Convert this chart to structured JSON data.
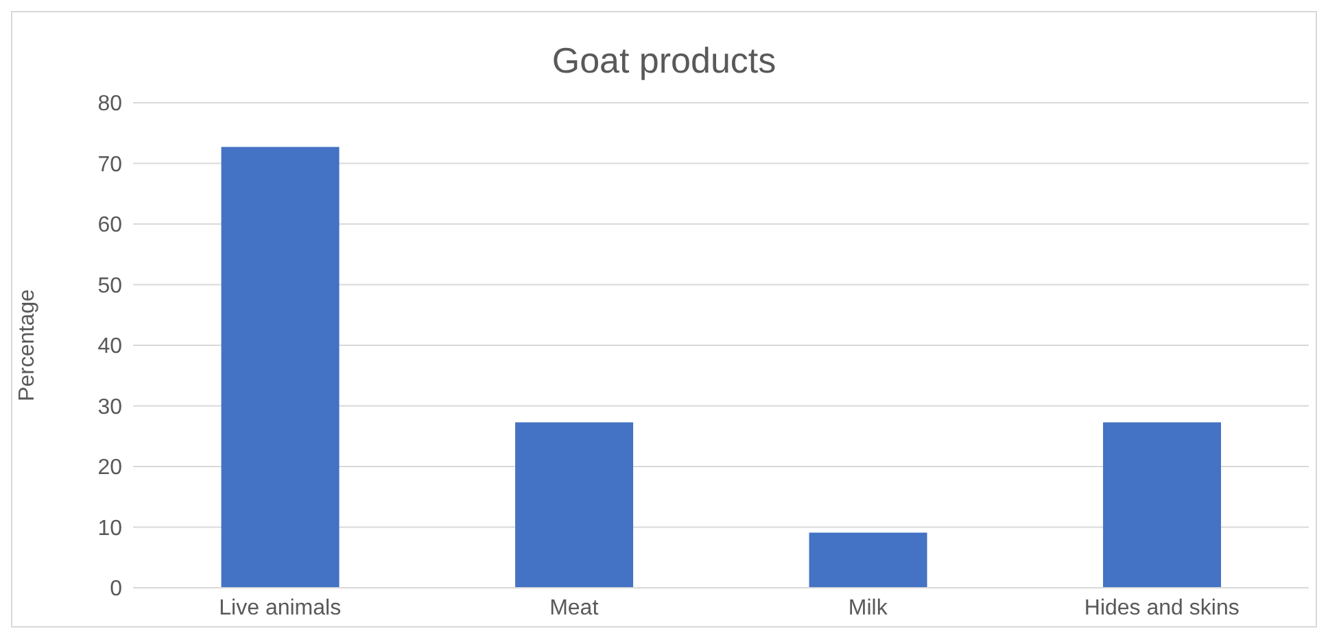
{
  "chart_data": {
    "type": "bar",
    "title": "Goat products",
    "ylabel": "Percentage",
    "categories": [
      "Live animals",
      "Meat",
      "Milk",
      "Hides and skins"
    ],
    "values": [
      72.7,
      27.3,
      9.1,
      27.3
    ],
    "color": "#4472c4",
    "ylim": [
      0,
      80
    ],
    "yticks": [
      0,
      10,
      20,
      30,
      40,
      50,
      60,
      70,
      80
    ],
    "grid": "y"
  }
}
